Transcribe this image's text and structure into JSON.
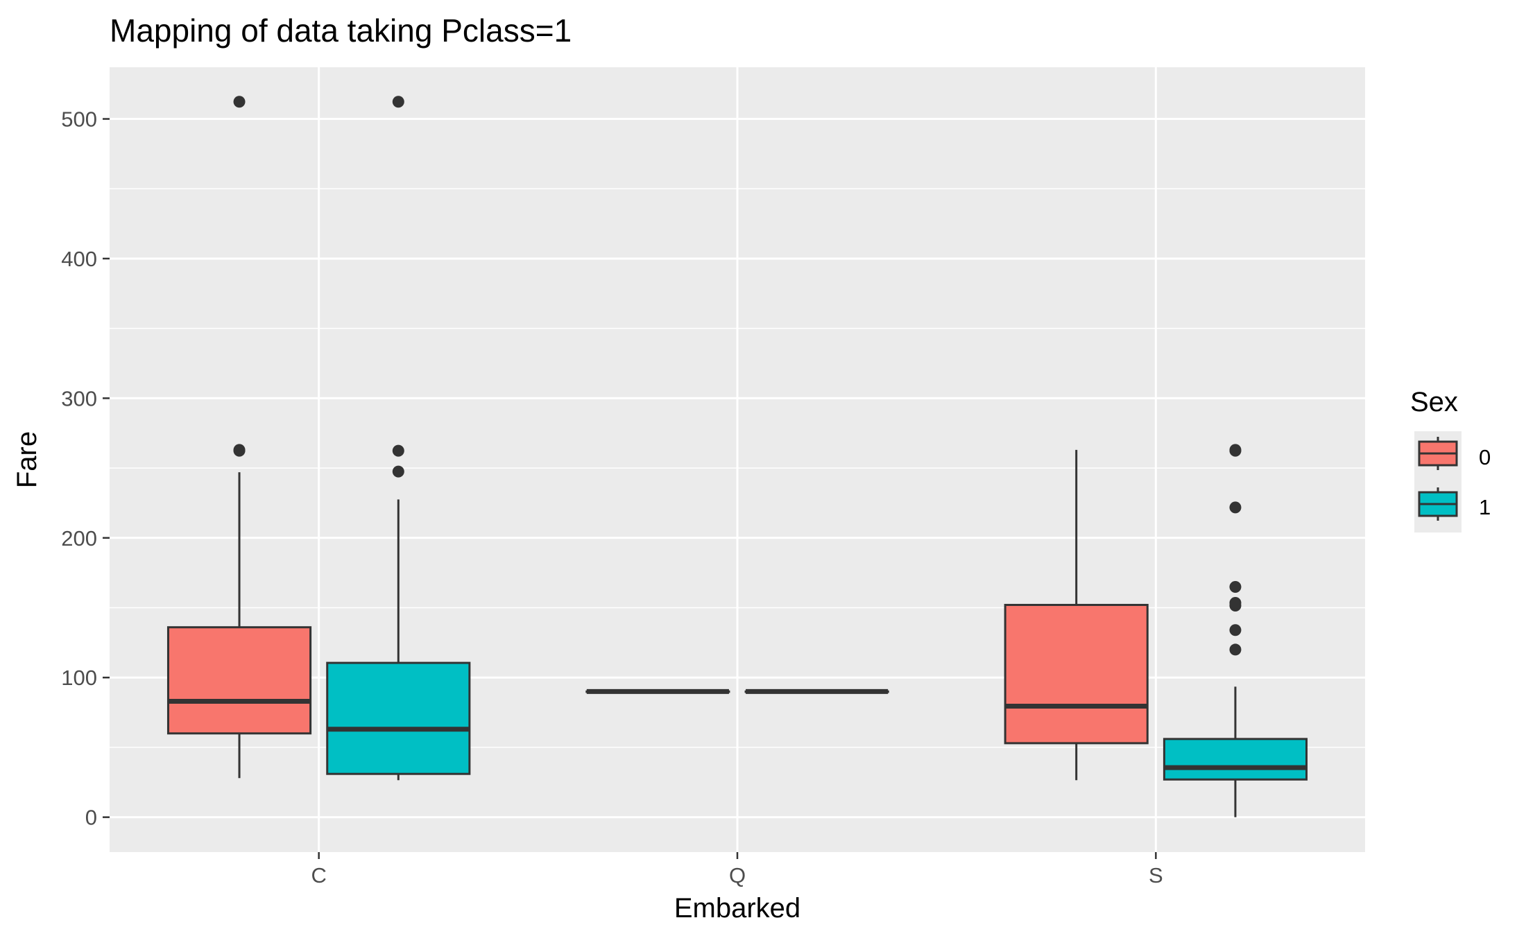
{
  "chart_data": {
    "type": "boxplot",
    "title": "Mapping of data taking Pclass=1",
    "xlabel": "Embarked",
    "ylabel": "Fare",
    "categories": [
      "C",
      "Q",
      "S"
    ],
    "ylim": [
      -25,
      537
    ],
    "yticks": [
      0,
      100,
      200,
      300,
      400,
      500
    ],
    "grid": true,
    "legend": {
      "title": "Sex",
      "position": "right",
      "entries": [
        {
          "label": "0",
          "color": "#F8766D"
        },
        {
          "label": "1",
          "color": "#00BFC4"
        }
      ]
    },
    "series": [
      {
        "name": "0",
        "color": "#F8766D",
        "boxes": [
          {
            "category": "C",
            "whisker_low": 28,
            "q1": 60,
            "median": 83,
            "q3": 136,
            "whisker_high": 247,
            "outliers": [
              262.4,
              263,
              512.3
            ]
          },
          {
            "category": "Q",
            "whisker_low": 90,
            "q1": 90,
            "median": 90,
            "q3": 90,
            "whisker_high": 90,
            "outliers": []
          },
          {
            "category": "S",
            "whisker_low": 26.5,
            "q1": 53,
            "median": 79.5,
            "q3": 152,
            "whisker_high": 263,
            "outliers": []
          }
        ]
      },
      {
        "name": "1",
        "color": "#00BFC4",
        "boxes": [
          {
            "category": "C",
            "whisker_low": 26.5,
            "q1": 31,
            "median": 63,
            "q3": 110.5,
            "whisker_high": 227.5,
            "outliers": [
              247.5,
              262.4,
              512.3
            ]
          },
          {
            "category": "Q",
            "whisker_low": 90,
            "q1": 90,
            "median": 90,
            "q3": 90,
            "whisker_high": 90,
            "outliers": []
          },
          {
            "category": "S",
            "whisker_low": 0,
            "q1": 27,
            "median": 35.5,
            "q3": 56,
            "whisker_high": 93.5,
            "outliers": [
              120,
              134,
              151.5,
              153.5,
              164.9,
              221.8,
              262.4,
              263
            ]
          }
        ]
      }
    ]
  },
  "colors": {
    "panel_bg": "#EBEBEB",
    "grid": "#FFFFFF",
    "box_stroke": "#333333"
  }
}
